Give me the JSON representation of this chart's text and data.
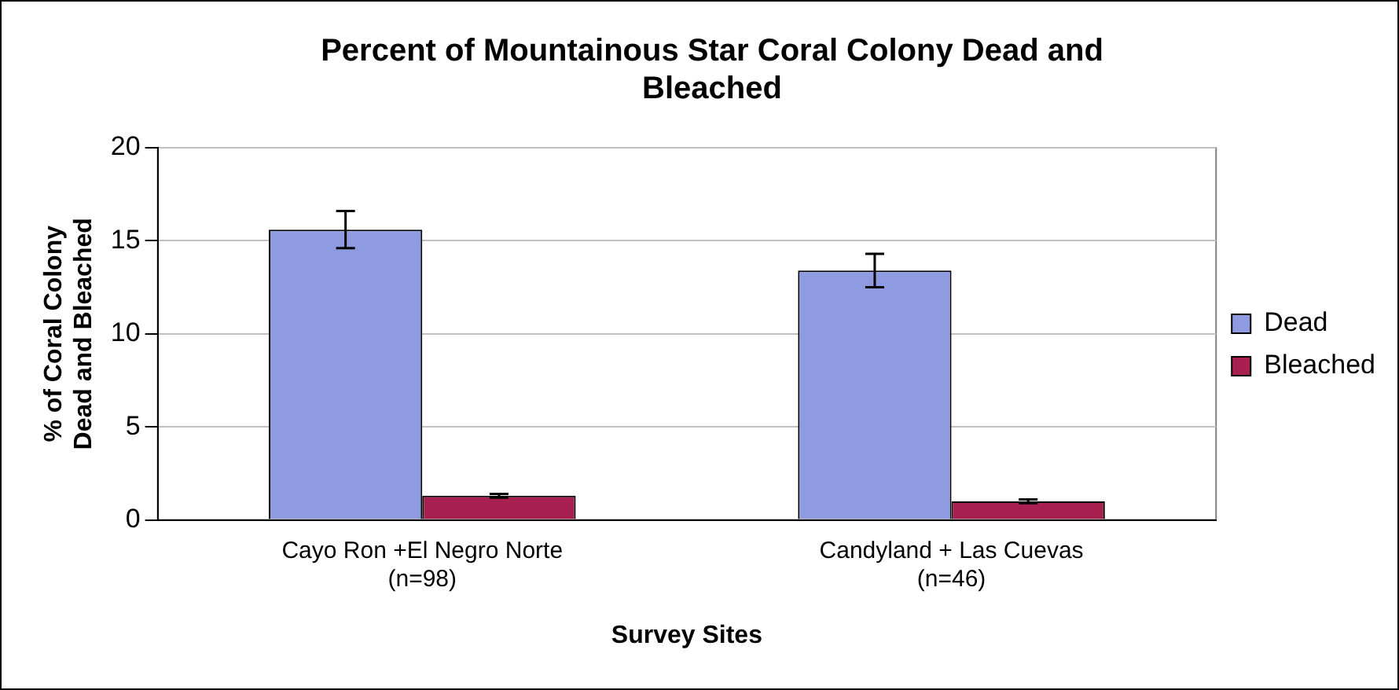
{
  "chart_data": {
    "type": "bar",
    "title": "Percent of Mountainous Star Coral Colony Dead and Bleached",
    "xlabel": "Survey Sites",
    "ylabel": "% of Coral Colony Dead and Bleached",
    "categories": [
      "Cayo Ron +El Negro Norte\n(n=98)",
      "Candyland + Las Cuevas\n(n=46)"
    ],
    "series": [
      {
        "name": "Dead",
        "color": "#8e9be0",
        "values": [
          15.6,
          13.4
        ],
        "errors": [
          1.0,
          0.9
        ]
      },
      {
        "name": "Bleached",
        "color": "#a8204f",
        "values": [
          1.3,
          1.0
        ],
        "errors": [
          0.1,
          0.1
        ]
      }
    ],
    "ylim": [
      0,
      20
    ],
    "yticks": [
      0,
      5,
      10,
      15,
      20
    ],
    "grid": "y",
    "legend": "right"
  }
}
